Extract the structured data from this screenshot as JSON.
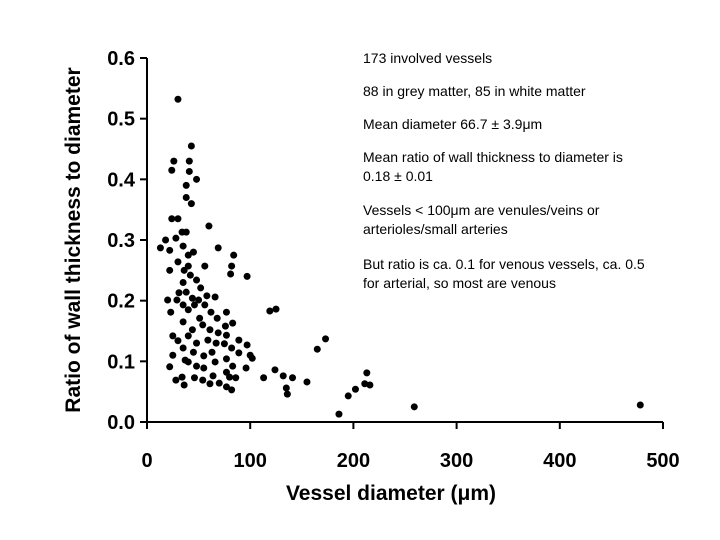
{
  "chart_data": {
    "type": "scatter",
    "xlabel": "Vessel diameter (μm)",
    "ylabel": "Ratio of wall thickness to diameter",
    "xlim": [
      0,
      500
    ],
    "ylim": [
      0,
      0.6
    ],
    "xticks": [
      0,
      100,
      200,
      300,
      400,
      500
    ],
    "yticks": [
      {
        "value": 0,
        "label": "0.0"
      },
      0.1,
      0.2,
      0.3,
      0.4,
      0.5,
      0.6
    ],
    "color": "#000000",
    "annotations": [
      [
        "173 involved vessels"
      ],
      [
        "88 in grey matter, 85 in white matter"
      ],
      [
        "Mean diameter 66.7 ± 3.9μm"
      ],
      [
        "Mean ratio of wall thickness to diameter is",
        "0.18 ± 0.01"
      ],
      [
        "Vessels < 100μm are venules/veins or",
        "arterioles/small arteries"
      ],
      [
        "But ratio is ca. 0.1 for venous vessels, ca. 0.5",
        "for arterial, so most are venous"
      ]
    ],
    "x": [
      30,
      43,
      41,
      26,
      24,
      41,
      38,
      48,
      38,
      43,
      24,
      30,
      60,
      34,
      28,
      38,
      18,
      35,
      69,
      84,
      13,
      22,
      40,
      45,
      30,
      40,
      56,
      82,
      22,
      36,
      42,
      81,
      97,
      35,
      48,
      31,
      38,
      52,
      20,
      29,
      44,
      50,
      58,
      66,
      35,
      46,
      56,
      62,
      119,
      125,
      23,
      40,
      77,
      51,
      68,
      35,
      54,
      83,
      76,
      44,
      61,
      69,
      25,
      40,
      77,
      89,
      173,
      30,
      59,
      48,
      67,
      75,
      97,
      35,
      82,
      165,
      45,
      63,
      89,
      100,
      25,
      55,
      37,
      77,
      102,
      40,
      66,
      48,
      83,
      22,
      55,
      96,
      124,
      77,
      132,
      141,
      213,
      34,
      64,
      86,
      113,
      46,
      54,
      80,
      155,
      28,
      70,
      36,
      61,
      211,
      216,
      77,
      135,
      82,
      202,
      136,
      195,
      259,
      478,
      186
    ],
    "values": [
      0.532,
      0.455,
      0.43,
      0.43,
      0.415,
      0.413,
      0.39,
      0.4,
      0.37,
      0.36,
      0.335,
      0.335,
      0.323,
      0.313,
      0.303,
      0.313,
      0.3,
      0.29,
      0.287,
      0.275,
      0.287,
      0.283,
      0.275,
      0.28,
      0.264,
      0.257,
      0.257,
      0.257,
      0.25,
      0.25,
      0.242,
      0.244,
      0.24,
      0.23,
      0.234,
      0.213,
      0.214,
      0.221,
      0.201,
      0.201,
      0.204,
      0.201,
      0.208,
      0.206,
      0.193,
      0.193,
      0.193,
      0.181,
      0.183,
      0.186,
      0.181,
      0.185,
      0.181,
      0.171,
      0.171,
      0.165,
      0.16,
      0.163,
      0.158,
      0.152,
      0.152,
      0.147,
      0.142,
      0.142,
      0.143,
      0.135,
      0.137,
      0.134,
      0.135,
      0.13,
      0.13,
      0.129,
      0.127,
      0.122,
      0.122,
      0.12,
      0.115,
      0.115,
      0.114,
      0.11,
      0.11,
      0.109,
      0.102,
      0.104,
      0.105,
      0.099,
      0.099,
      0.092,
      0.092,
      0.091,
      0.089,
      0.089,
      0.086,
      0.082,
      0.076,
      0.073,
      0.081,
      0.074,
      0.076,
      0.073,
      0.073,
      0.073,
      0.069,
      0.074,
      0.066,
      0.069,
      0.064,
      0.061,
      0.063,
      0.063,
      0.061,
      0.058,
      0.056,
      0.053,
      0.054,
      0.046,
      0.043,
      0.025,
      0.028,
      0.013
    ]
  }
}
